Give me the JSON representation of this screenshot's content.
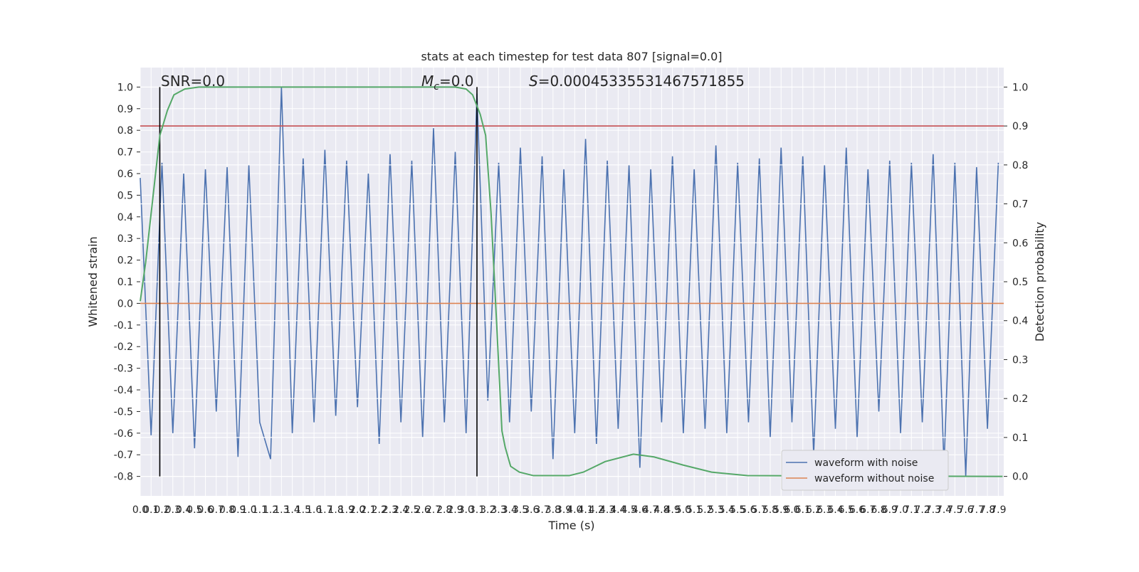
{
  "chart_data": {
    "type": "line",
    "title": "stats at each timestep for test data 807 [signal=0.0]",
    "xlabel": "Time (s)",
    "ylabel": "Whitened strain",
    "y2label": "Detection probability",
    "xlim": [
      0,
      7.95
    ],
    "ylim": [
      -0.89,
      1.09
    ],
    "y2lim": [
      -0.05,
      1.05
    ],
    "xticks": [
      {
        "value": 0,
        "label": "0.0"
      },
      0.1,
      0.2,
      0.3,
      0.4,
      0.5,
      0.6,
      0.7,
      0.8,
      0.9,
      {
        "value": 1,
        "label": "1.0"
      },
      1.1,
      1.2,
      1.3,
      1.4,
      1.5,
      1.6,
      1.7,
      1.8,
      1.9,
      {
        "value": 2,
        "label": "2.0"
      },
      2.1,
      2.2,
      2.3,
      2.4,
      2.5,
      2.6,
      2.7,
      2.8,
      2.9,
      {
        "value": 3,
        "label": "3.0"
      },
      3.1,
      3.2,
      3.3,
      3.4,
      3.5,
      3.6,
      3.7,
      3.8,
      3.9,
      {
        "value": 4,
        "label": "4.0"
      },
      4.1,
      4.2,
      4.3,
      4.4,
      4.5,
      4.6,
      4.7,
      4.8,
      4.9,
      {
        "value": 5,
        "label": "5.0"
      },
      5.1,
      5.2,
      5.3,
      5.4,
      5.5,
      5.6,
      5.7,
      5.8,
      5.9,
      {
        "value": 6,
        "label": "6.0"
      },
      6.1,
      6.2,
      6.3,
      6.4,
      6.5,
      6.6,
      6.7,
      6.8,
      6.9,
      {
        "value": 7,
        "label": "7.0"
      },
      7.1,
      7.2,
      7.3,
      7.4,
      7.5,
      7.6,
      7.7,
      7.8,
      7.9
    ],
    "yticks": [
      -0.8,
      -0.7,
      -0.6,
      -0.5,
      -0.4,
      -0.3,
      -0.2,
      -0.1,
      {
        "value": 0,
        "label": "0.0"
      },
      0.1,
      0.2,
      0.3,
      0.4,
      0.5,
      0.6,
      0.7,
      0.8,
      0.9,
      {
        "value": 1,
        "label": "1.0"
      }
    ],
    "y2ticks": [
      {
        "value": 0,
        "label": "0.0"
      },
      0.1,
      0.2,
      0.3,
      0.4,
      0.5,
      0.6,
      0.7,
      0.8,
      0.9,
      {
        "value": 1,
        "label": "1.0"
      }
    ],
    "grid": true,
    "legend": "lower right",
    "series": [
      {
        "name": "waveform with noise",
        "color": "#4c72b0",
        "x": [
          0,
          0.1,
          0.2,
          0.3,
          0.4,
          0.5,
          0.6,
          0.7,
          0.8,
          0.9,
          1,
          1.1,
          1.2,
          1.3,
          1.4,
          1.5,
          1.6,
          1.7,
          1.8,
          1.9,
          2,
          2.1,
          2.2,
          2.3,
          2.4,
          2.5,
          2.6,
          2.7,
          2.8,
          2.9,
          3,
          3.1,
          3.2,
          3.3,
          3.4,
          3.5,
          3.6,
          3.7,
          3.8,
          3.9,
          4,
          4.1,
          4.2,
          4.3,
          4.4,
          4.5,
          4.6,
          4.7,
          4.8,
          4.9,
          5,
          5.1,
          5.2,
          5.3,
          5.4,
          5.5,
          5.6,
          5.7,
          5.8,
          5.9,
          6,
          6.1,
          6.2,
          6.3,
          6.4,
          6.5,
          6.6,
          6.7,
          6.8,
          6.9,
          7,
          7.1,
          7.2,
          7.3,
          7.4,
          7.5,
          7.6,
          7.7,
          7.8,
          7.9
        ],
        "values": [
          0.58,
          -0.61,
          0.65,
          -0.6,
          0.6,
          -0.67,
          0.62,
          -0.5,
          0.63,
          -0.71,
          0.64,
          -0.55,
          -0.72,
          1.0,
          -0.6,
          0.67,
          -0.55,
          0.71,
          -0.52,
          0.66,
          -0.48,
          0.6,
          -0.65,
          0.69,
          -0.55,
          0.66,
          -0.62,
          0.81,
          -0.55,
          0.7,
          -0.6,
          0.97,
          -0.45,
          0.65,
          -0.55,
          0.72,
          -0.5,
          0.68,
          -0.72,
          0.62,
          -0.6,
          0.76,
          -0.65,
          0.66,
          -0.58,
          0.64,
          -0.76,
          0.62,
          -0.55,
          0.68,
          -0.6,
          0.62,
          -0.58,
          0.73,
          -0.6,
          0.65,
          -0.55,
          0.67,
          -0.62,
          0.72,
          -0.55,
          0.68,
          -0.7,
          0.64,
          -0.58,
          0.72,
          -0.62,
          0.62,
          -0.5,
          0.66,
          -0.6,
          0.65,
          -0.55,
          0.69,
          -0.75,
          0.65,
          -0.8,
          0.63,
          -0.58,
          0.65
        ]
      },
      {
        "name": "waveform without noise",
        "color": "#dd8452",
        "x": [
          0,
          7.95
        ],
        "values": [
          0,
          0
        ]
      },
      {
        "color": "#55a868",
        "axis": "y2",
        "x": [
          0,
          0.05,
          0.18,
          0.25,
          0.31,
          0.41,
          0.54,
          2.9,
          3.0,
          3.06,
          3.13,
          3.18,
          3.23,
          3.28,
          3.33,
          3.36,
          3.41,
          3.49,
          3.62,
          3.95,
          4.08,
          4.28,
          4.54,
          4.73,
          5.0,
          5.26,
          5.59,
          7.94
        ],
        "values": [
          0.45,
          0.55,
          0.875,
          0.94,
          0.98,
          0.995,
          1.0,
          1.0,
          0.995,
          0.98,
          0.93,
          0.876,
          0.675,
          0.4,
          0.117,
          0.075,
          0.026,
          0.011,
          0.002,
          0.002,
          0.011,
          0.038,
          0.057,
          0.05,
          0.029,
          0.011,
          0.002,
          0.0
        ]
      }
    ],
    "hlines": [
      {
        "value": 0.9,
        "axis": "y2",
        "color": "#c44e52"
      }
    ],
    "vlines": [
      {
        "x": 0.18,
        "ymin": -0.8,
        "ymax": 1.0
      },
      {
        "x": 3.1,
        "ymin": -0.8,
        "ymax": 1.0
      }
    ],
    "annotations": [
      "SNR=0.0",
      {
        "symbol": "M",
        "subscript": "c",
        "rest": "=0.0"
      },
      {
        "symbol": "S",
        "rest": "=0.00045335531467571855"
      }
    ]
  }
}
